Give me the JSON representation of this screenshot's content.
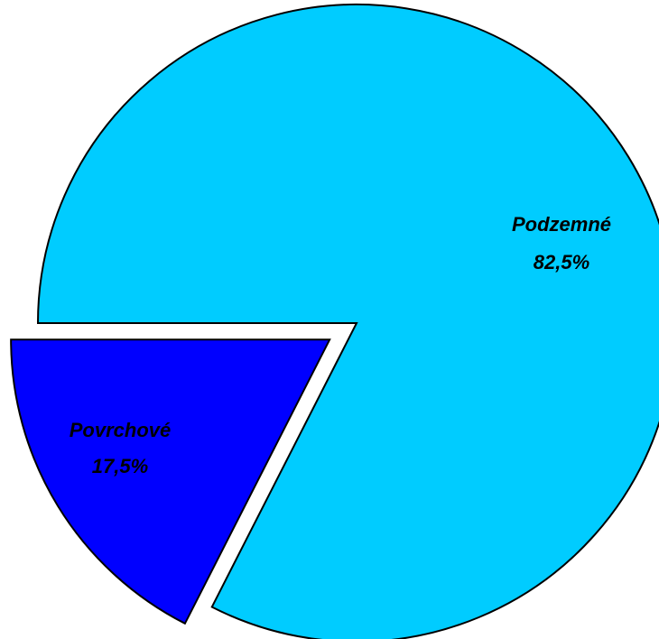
{
  "chart_data": {
    "type": "pie",
    "categories": [
      "Podzemné",
      "Povrchové"
    ],
    "values": [
      82.5,
      17.5
    ],
    "value_labels": [
      "82,5%",
      "17,5%"
    ],
    "colors": [
      "#00ccff",
      "#0000ff"
    ]
  }
}
